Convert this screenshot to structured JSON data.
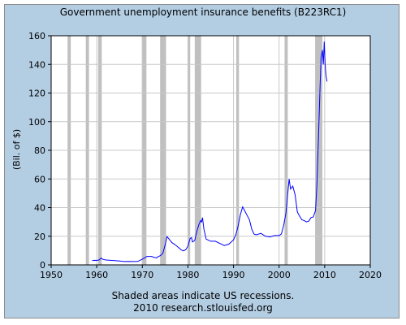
{
  "chart_data": {
    "type": "line",
    "title": "Government unemployment insurance benefits (B223RC1)",
    "ylabel": "(Bil. of $)",
    "xlabel": "",
    "xlim": [
      1950,
      2020
    ],
    "ylim": [
      0,
      160
    ],
    "x_ticks": [
      "1950",
      "1960",
      "1970",
      "1980",
      "1990",
      "2000",
      "2010",
      "2020"
    ],
    "y_ticks": [
      "0",
      "20",
      "40",
      "60",
      "80",
      "100",
      "120",
      "140",
      "160"
    ],
    "grid": true,
    "series": [
      {
        "color": "#0000ff",
        "points": [
          [
            1959.0,
            3.0
          ],
          [
            1959.5,
            3.2
          ],
          [
            1960.0,
            3.1
          ],
          [
            1960.5,
            3.4
          ],
          [
            1961.0,
            4.8
          ],
          [
            1961.3,
            3.9
          ],
          [
            1962.0,
            3.4
          ],
          [
            1963.0,
            3.2
          ],
          [
            1964.0,
            3.0
          ],
          [
            1965.0,
            2.7
          ],
          [
            1966.0,
            2.3
          ],
          [
            1967.0,
            2.4
          ],
          [
            1968.0,
            2.3
          ],
          [
            1969.0,
            2.4
          ],
          [
            1970.0,
            4.0
          ],
          [
            1970.5,
            4.8
          ],
          [
            1971.0,
            5.9
          ],
          [
            1972.0,
            5.9
          ],
          [
            1973.0,
            4.8
          ],
          [
            1974.0,
            6.5
          ],
          [
            1974.5,
            8.0
          ],
          [
            1975.0,
            14.0
          ],
          [
            1975.4,
            19.8
          ],
          [
            1976.0,
            17.5
          ],
          [
            1976.5,
            15.5
          ],
          [
            1977.0,
            14.5
          ],
          [
            1978.0,
            12.0
          ],
          [
            1978.5,
            10.5
          ],
          [
            1979.0,
            9.8
          ],
          [
            1979.5,
            10.5
          ],
          [
            1980.0,
            13.0
          ],
          [
            1980.5,
            18.5
          ],
          [
            1980.8,
            19.0
          ],
          [
            1981.0,
            16.0
          ],
          [
            1981.5,
            17.0
          ],
          [
            1982.0,
            24.0
          ],
          [
            1982.4,
            28.0
          ],
          [
            1982.8,
            31.0
          ],
          [
            1983.0,
            30.0
          ],
          [
            1983.2,
            33.0
          ],
          [
            1983.5,
            25.0
          ],
          [
            1984.0,
            18.0
          ],
          [
            1985.0,
            16.5
          ],
          [
            1986.0,
            16.5
          ],
          [
            1987.0,
            15.0
          ],
          [
            1988.0,
            13.5
          ],
          [
            1989.0,
            14.5
          ],
          [
            1990.0,
            17.5
          ],
          [
            1990.5,
            21.0
          ],
          [
            1991.0,
            27.0
          ],
          [
            1991.5,
            35.0
          ],
          [
            1992.0,
            40.5
          ],
          [
            1992.5,
            37.5
          ],
          [
            1993.0,
            34.5
          ],
          [
            1993.5,
            31.5
          ],
          [
            1994.0,
            25.0
          ],
          [
            1994.5,
            21.5
          ],
          [
            1995.0,
            21.0
          ],
          [
            1996.0,
            22.0
          ],
          [
            1997.0,
            20.0
          ],
          [
            1998.0,
            19.5
          ],
          [
            1999.0,
            20.5
          ],
          [
            2000.0,
            20.5
          ],
          [
            2000.5,
            21.5
          ],
          [
            2001.0,
            27.5
          ],
          [
            2001.5,
            36.0
          ],
          [
            2002.0,
            53.0
          ],
          [
            2002.2,
            60.0
          ],
          [
            2002.5,
            53.0
          ],
          [
            2003.0,
            55.0
          ],
          [
            2003.5,
            49.0
          ],
          [
            2004.0,
            37.0
          ],
          [
            2004.5,
            34.0
          ],
          [
            2005.0,
            31.5
          ],
          [
            2005.5,
            31.0
          ],
          [
            2006.0,
            30.0
          ],
          [
            2006.5,
            30.5
          ],
          [
            2007.0,
            33.0
          ],
          [
            2007.5,
            33.5
          ],
          [
            2008.0,
            38.0
          ],
          [
            2008.3,
            56.0
          ],
          [
            2008.6,
            85.0
          ],
          [
            2008.8,
            105.0
          ],
          [
            2009.0,
            125.0
          ],
          [
            2009.2,
            145.0
          ],
          [
            2009.5,
            150.0
          ],
          [
            2009.7,
            140.0
          ],
          [
            2009.9,
            156.0
          ],
          [
            2010.1,
            140.0
          ],
          [
            2010.3,
            132.0
          ],
          [
            2010.5,
            128.0
          ]
        ]
      }
    ],
    "recessions": [
      [
        1953.6,
        1954.3
      ],
      [
        1957.6,
        1958.3
      ],
      [
        1960.3,
        1961.1
      ],
      [
        1969.9,
        1970.9
      ],
      [
        1973.9,
        1975.2
      ],
      [
        1980.0,
        1980.5
      ],
      [
        1981.5,
        1982.9
      ],
      [
        1990.6,
        1991.2
      ],
      [
        2001.2,
        2001.9
      ],
      [
        2007.9,
        2009.5
      ]
    ],
    "recession_color": "#c0c0c0",
    "footer": [
      "Shaded areas indicate US recessions.",
      "2010 research.stlouisfed.org"
    ]
  }
}
